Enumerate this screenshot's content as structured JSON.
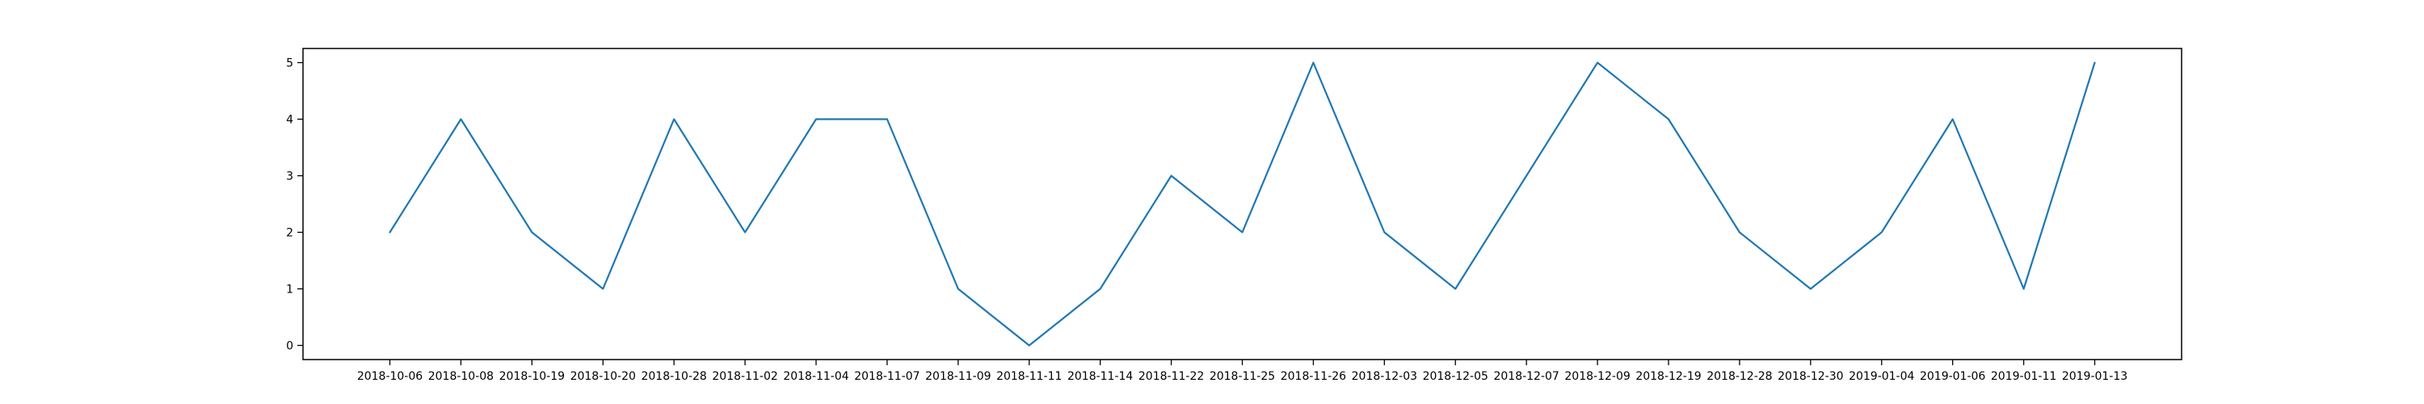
{
  "chart_data": {
    "type": "line",
    "title": "",
    "xlabel": "",
    "ylabel": "",
    "x": [
      "2018-10-06",
      "2018-10-08",
      "2018-10-19",
      "2018-10-20",
      "2018-10-28",
      "2018-11-02",
      "2018-11-04",
      "2018-11-07",
      "2018-11-09",
      "2018-11-11",
      "2018-11-14",
      "2018-11-22",
      "2018-11-25",
      "2018-11-26",
      "2018-12-03",
      "2018-12-05",
      "2018-12-07",
      "2018-12-09",
      "2018-12-19",
      "2018-12-28",
      "2018-12-30",
      "2019-01-04",
      "2019-01-06",
      "2019-01-11",
      "2019-01-13"
    ],
    "series": [
      {
        "values": [
          2,
          4,
          2,
          1,
          4,
          2,
          4,
          4,
          1,
          0,
          1,
          3,
          2,
          5,
          2,
          1,
          3,
          5,
          4,
          2,
          1,
          2,
          4,
          1,
          5
        ]
      }
    ],
    "ylim": [
      -0.25,
      5.25
    ],
    "yticks": [
      0,
      1,
      2,
      3,
      4,
      5
    ],
    "grid": false,
    "line_color": "#1f77b4"
  }
}
